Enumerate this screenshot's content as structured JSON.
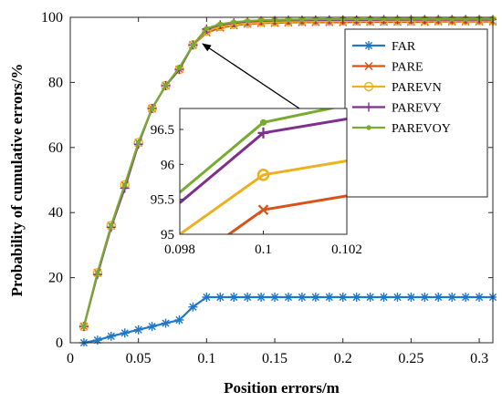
{
  "chart_data": [
    {
      "type": "line",
      "xlabel": "Position errors/m",
      "ylabel": "Probability of cumulative errors/%",
      "xlim": [
        0,
        0.31
      ],
      "ylim": [
        0,
        100
      ],
      "xticks": [
        0,
        0.05,
        0.1,
        0.15,
        0.2,
        0.25,
        0.3
      ],
      "xtick_labels": [
        "0",
        "0.05",
        "0.1",
        "0.15",
        "0.2",
        "0.25",
        "0.3"
      ],
      "yticks": [
        0,
        20,
        40,
        60,
        80,
        100
      ],
      "ytick_labels": [
        "0",
        "20",
        "40",
        "60",
        "80",
        "100"
      ],
      "grid": false,
      "legend_position": "top-right",
      "series": [
        {
          "name": "FAR",
          "color": "#1f77c8",
          "marker": "asterisk",
          "x": [
            0.01,
            0.02,
            0.03,
            0.04,
            0.05,
            0.06,
            0.07,
            0.08,
            0.09,
            0.1,
            0.11,
            0.12,
            0.13,
            0.14,
            0.15,
            0.16,
            0.17,
            0.18,
            0.19,
            0.2,
            0.21,
            0.22,
            0.23,
            0.24,
            0.25,
            0.26,
            0.27,
            0.28,
            0.29,
            0.3,
            0.31
          ],
          "y": [
            0,
            0.8,
            2,
            3,
            4,
            5,
            6,
            7,
            11,
            14,
            14,
            14,
            14,
            14,
            14,
            14,
            14,
            14,
            14,
            14,
            14,
            14,
            14,
            14,
            14,
            14,
            14,
            14,
            14,
            14,
            14
          ]
        },
        {
          "name": "PARE",
          "color": "#d95319",
          "marker": "x",
          "x": [
            0.01,
            0.02,
            0.03,
            0.04,
            0.05,
            0.06,
            0.07,
            0.08,
            0.09,
            0.1,
            0.11,
            0.12,
            0.13,
            0.14,
            0.15,
            0.16,
            0.17,
            0.18,
            0.19,
            0.2,
            0.21,
            0.22,
            0.23,
            0.24,
            0.25,
            0.26,
            0.27,
            0.28,
            0.29,
            0.3,
            0.31
          ],
          "y": [
            5,
            21.5,
            36,
            48.5,
            61.5,
            72,
            79,
            84,
            91.5,
            95.3,
            96.8,
            97.5,
            98,
            98.2,
            98.3,
            98.4,
            98.5,
            98.5,
            98.5,
            98.5,
            98.6,
            98.6,
            98.6,
            98.6,
            98.6,
            98.6,
            98.7,
            98.7,
            98.7,
            98.7,
            98.7
          ]
        },
        {
          "name": "PAREVN",
          "color": "#edb120",
          "marker": "circle",
          "x": [
            0.01,
            0.02,
            0.03,
            0.04,
            0.05,
            0.06,
            0.07,
            0.08,
            0.09,
            0.1,
            0.11,
            0.12,
            0.13,
            0.14,
            0.15,
            0.16,
            0.17,
            0.18,
            0.19,
            0.2,
            0.21,
            0.22,
            0.23,
            0.24,
            0.25,
            0.26,
            0.27,
            0.28,
            0.29,
            0.3,
            0.31
          ],
          "y": [
            5,
            21.5,
            36,
            48.5,
            61.5,
            72,
            79,
            84,
            91.5,
            95.8,
            97.2,
            97.8,
            98.2,
            98.5,
            98.6,
            98.7,
            98.8,
            98.8,
            98.8,
            98.9,
            98.9,
            98.9,
            98.9,
            98.9,
            98.9,
            99,
            99,
            99,
            99,
            99,
            99
          ]
        },
        {
          "name": "PAREVY",
          "color": "#7e2f8e",
          "marker": "plus",
          "x": [
            0.01,
            0.02,
            0.03,
            0.04,
            0.05,
            0.06,
            0.07,
            0.08,
            0.09,
            0.1,
            0.11,
            0.12,
            0.13,
            0.14,
            0.15,
            0.16,
            0.17,
            0.18,
            0.19,
            0.2,
            0.21,
            0.22,
            0.23,
            0.24,
            0.25,
            0.26,
            0.27,
            0.28,
            0.29,
            0.3,
            0.31
          ],
          "y": [
            5,
            21,
            35.5,
            47.5,
            61,
            72,
            79,
            84,
            91.5,
            96.4,
            97.7,
            98.3,
            98.7,
            98.9,
            99,
            99.1,
            99.1,
            99.2,
            99.2,
            99.2,
            99.2,
            99.2,
            99.3,
            99.3,
            99.3,
            99.3,
            99.3,
            99.3,
            99.3,
            99.3,
            99.3
          ]
        },
        {
          "name": "PAREVOY",
          "color": "#77ac30",
          "marker": "dot",
          "x": [
            0.01,
            0.02,
            0.03,
            0.04,
            0.05,
            0.06,
            0.07,
            0.08,
            0.09,
            0.1,
            0.11,
            0.12,
            0.13,
            0.14,
            0.15,
            0.16,
            0.17,
            0.18,
            0.19,
            0.2,
            0.21,
            0.22,
            0.23,
            0.24,
            0.25,
            0.26,
            0.27,
            0.28,
            0.29,
            0.3,
            0.31
          ],
          "y": [
            5,
            21.5,
            36,
            48.5,
            61.5,
            72,
            79,
            84.5,
            91.5,
            96.6,
            97.9,
            98.5,
            98.9,
            99.1,
            99.2,
            99.3,
            99.3,
            99.4,
            99.4,
            99.4,
            99.4,
            99.4,
            99.5,
            99.5,
            99.5,
            99.5,
            99.5,
            99.5,
            99.5,
            99.5,
            99.5
          ]
        }
      ]
    },
    {
      "type": "line",
      "role": "inset",
      "xlim": [
        0.098,
        0.102
      ],
      "ylim": [
        95,
        96.8
      ],
      "xticks": [
        0.098,
        0.1,
        0.102
      ],
      "xtick_labels": [
        "0.098",
        "0.1",
        "0.102"
      ],
      "yticks": [
        95,
        95.5,
        96,
        96.5
      ],
      "ytick_labels": [
        "95",
        "95.5",
        "96",
        "96.5"
      ],
      "series": [
        {
          "name": "PARE",
          "x": [
            0.098,
            0.1,
            0.102
          ],
          "y": [
            94.5,
            95.35,
            95.55
          ]
        },
        {
          "name": "PAREVN",
          "x": [
            0.098,
            0.1,
            0.102
          ],
          "y": [
            95.0,
            95.85,
            96.05
          ]
        },
        {
          "name": "PAREVY",
          "x": [
            0.098,
            0.1,
            0.102
          ],
          "y": [
            95.45,
            96.45,
            96.65
          ]
        },
        {
          "name": "PAREVOY",
          "x": [
            0.098,
            0.1,
            0.102
          ],
          "y": [
            95.6,
            96.6,
            96.85
          ]
        }
      ]
    }
  ]
}
